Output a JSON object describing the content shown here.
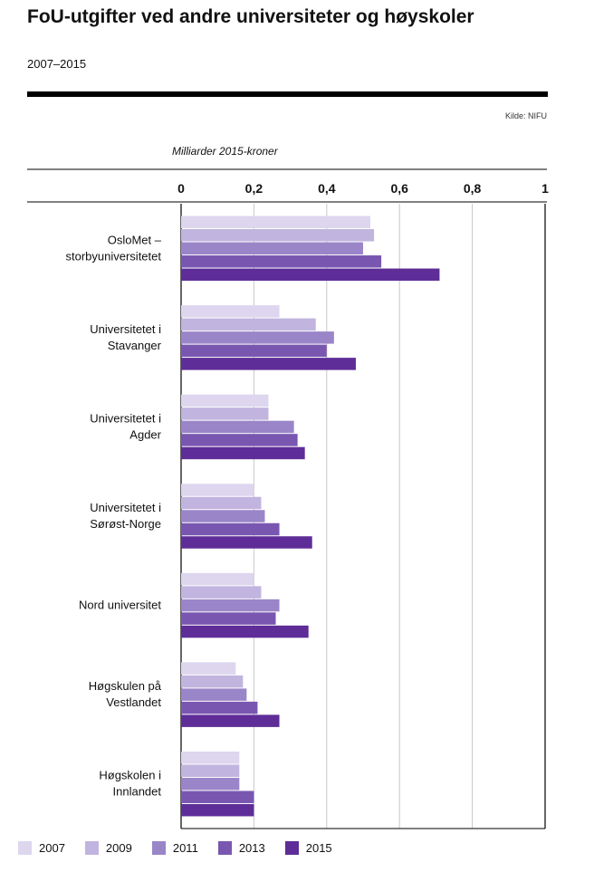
{
  "colors": {
    "s2007": "#ddd6ee",
    "s2009": "#c1b4df",
    "s2011": "#9a85c9",
    "s2013": "#7957b1",
    "s2015": "#5e2d97"
  },
  "chart_data": {
    "type": "bar",
    "orientation": "horizontal",
    "title": "FoU-utgifter ved andre universiteter og høyskoler",
    "subtitle": "2007–2015",
    "source": "Kilde: NIFU",
    "xlabel": "Milliarder 2015-kroner",
    "xlim": [
      0,
      1
    ],
    "xticks": [
      "0",
      "0,2",
      "0,4",
      "0,6",
      "0,8",
      "1"
    ],
    "grid": true,
    "legend_position": "bottom",
    "categories": [
      [
        "OsloMet –",
        "storbyuniversitetet"
      ],
      [
        "Universitetet i",
        "Stavanger"
      ],
      [
        "Universitetet i",
        "Agder"
      ],
      [
        "Universitetet i",
        "Sørøst-Norge"
      ],
      [
        "Nord universitet"
      ],
      [
        "Høgskulen på",
        "Vestlandet"
      ],
      [
        "Høgskolen i",
        "Innlandet"
      ]
    ],
    "series": [
      {
        "name": "2007",
        "color_key": "s2007",
        "values": [
          0.52,
          0.27,
          0.24,
          0.2,
          0.2,
          0.15,
          0.16
        ]
      },
      {
        "name": "2009",
        "color_key": "s2009",
        "values": [
          0.53,
          0.37,
          0.24,
          0.22,
          0.22,
          0.17,
          0.16
        ]
      },
      {
        "name": "2011",
        "color_key": "s2011",
        "values": [
          0.5,
          0.42,
          0.31,
          0.23,
          0.27,
          0.18,
          0.16
        ]
      },
      {
        "name": "2013",
        "color_key": "s2013",
        "values": [
          0.55,
          0.4,
          0.32,
          0.27,
          0.26,
          0.21,
          0.2
        ]
      },
      {
        "name": "2015",
        "color_key": "s2015",
        "values": [
          0.71,
          0.48,
          0.34,
          0.36,
          0.35,
          0.27,
          0.2
        ]
      }
    ]
  }
}
